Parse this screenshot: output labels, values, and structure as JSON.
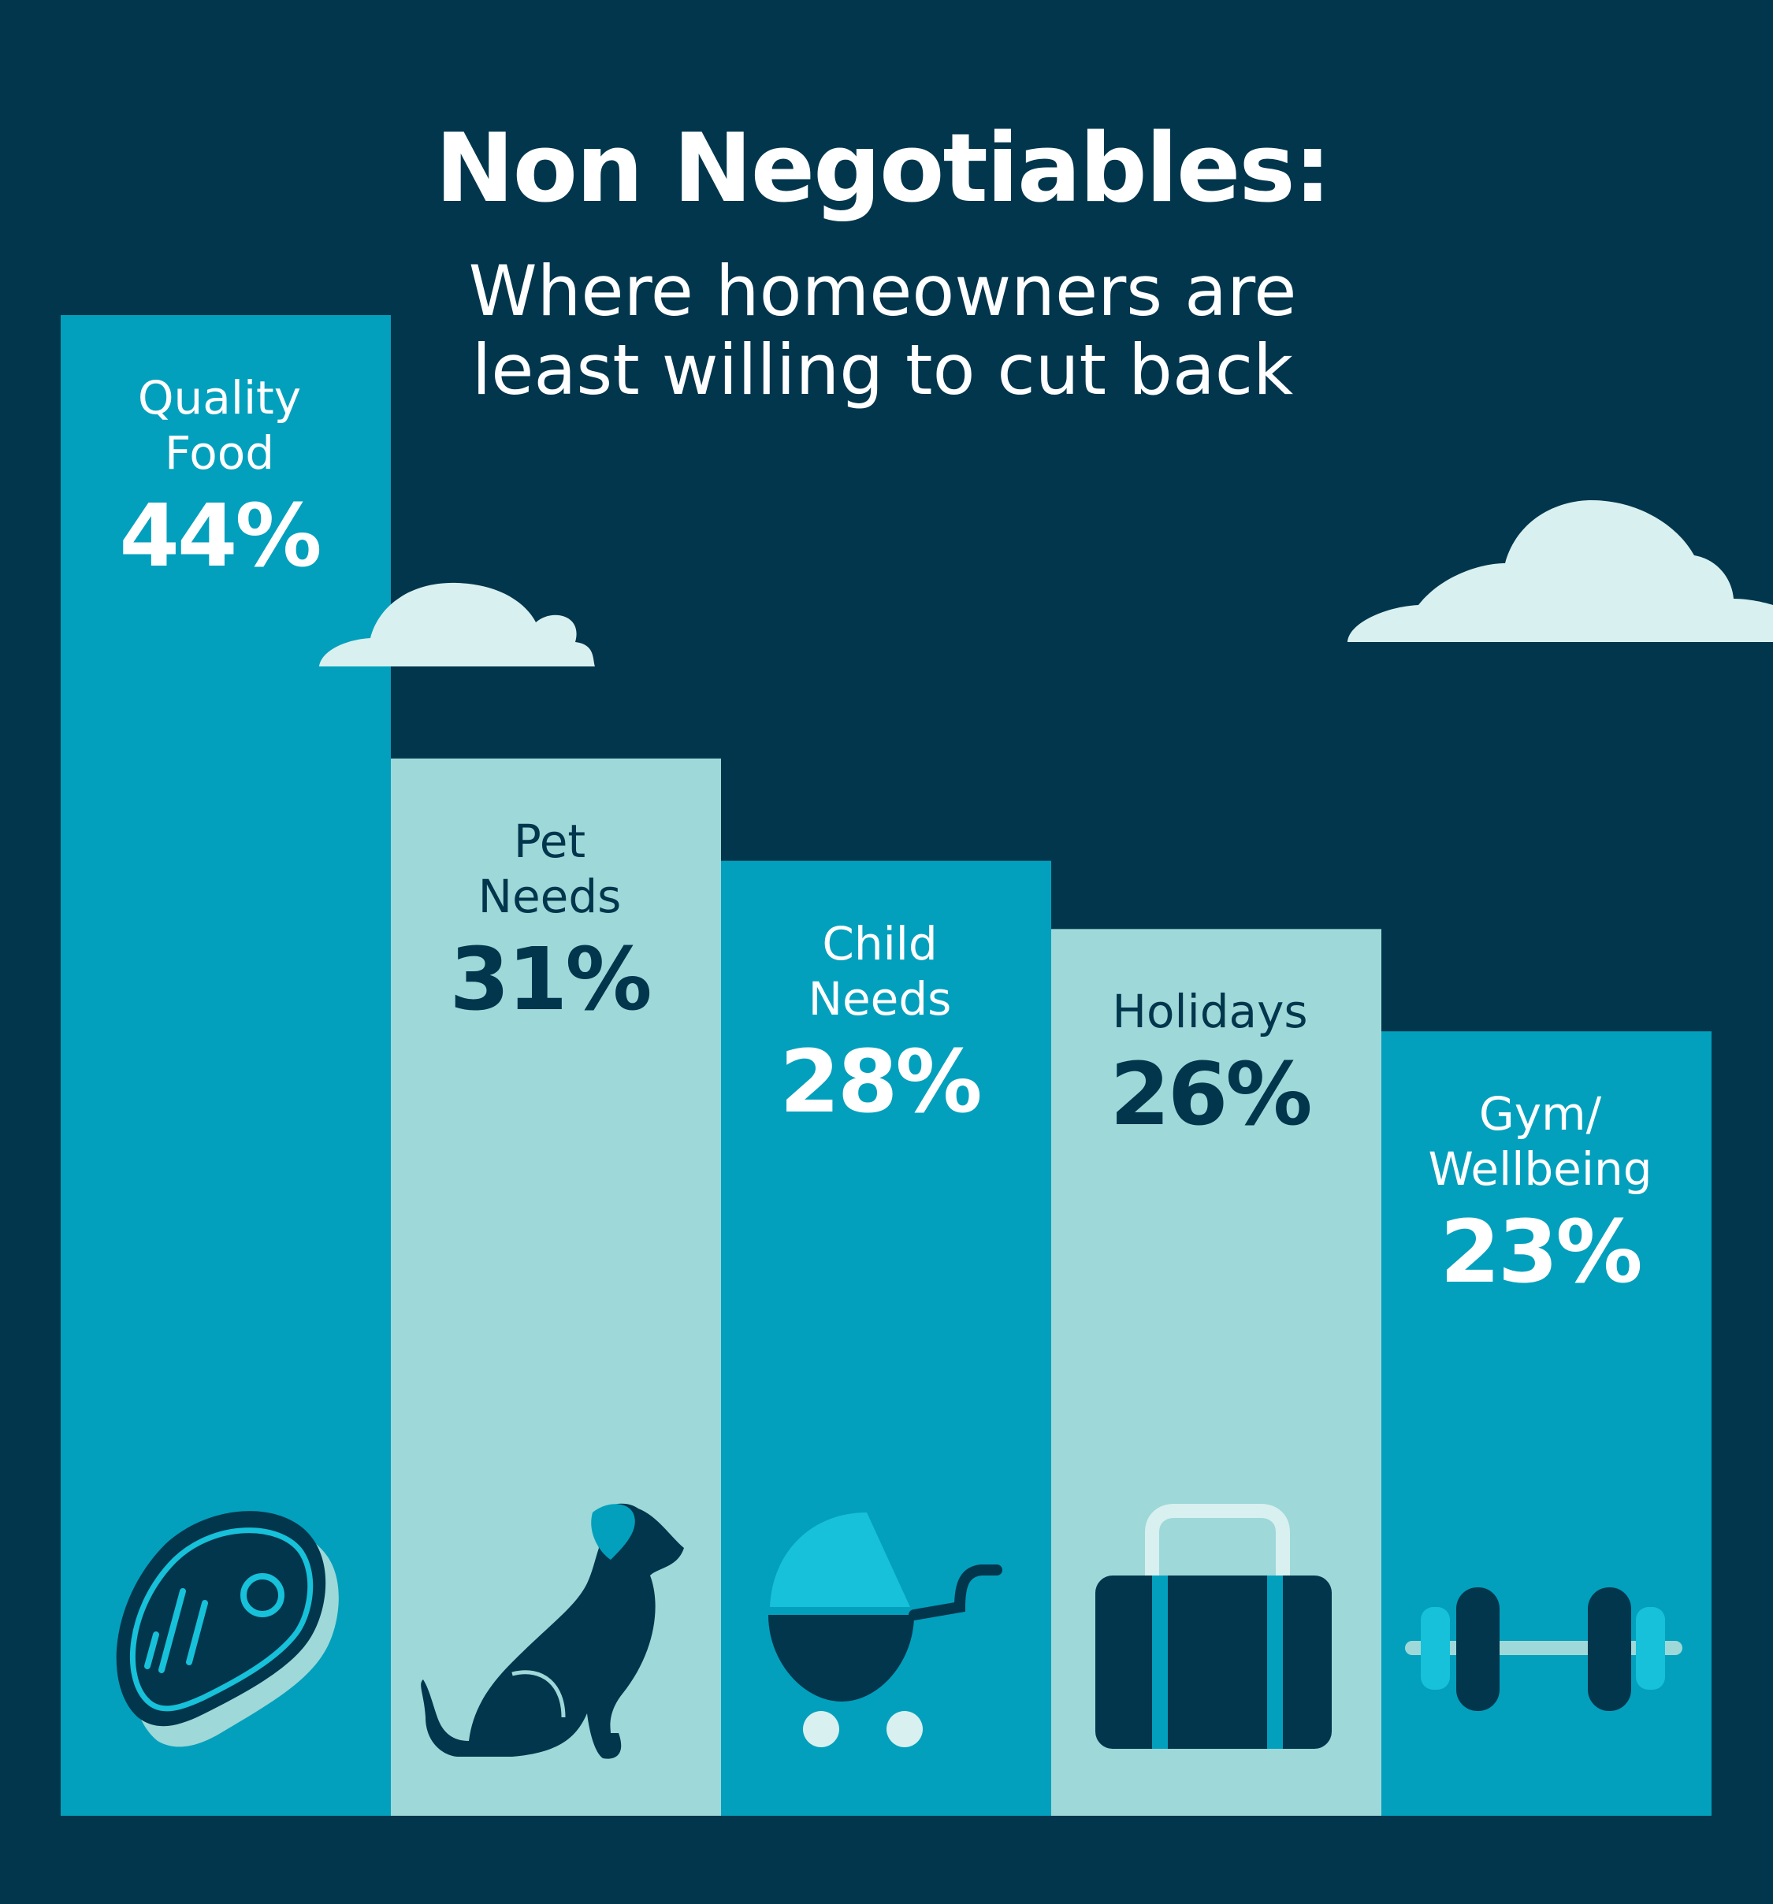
{
  "title": "Non Negotiables:",
  "subtitle_line1": "Where homeowners are",
  "subtitle_line2": "least willing to cut back",
  "colors": {
    "background": "#02364d",
    "bar_dark": "#02a0bd",
    "bar_light": "#9ed8d8",
    "cloud": "#d8f0ef",
    "icon_dark": "#02364d",
    "icon_accent": "#16c1d9"
  },
  "chart_data": {
    "type": "bar",
    "title": "Non Negotiables:",
    "subtitle": "Where homeowners are least willing to cut back",
    "categories": [
      "Quality Food",
      "Pet Needs",
      "Child Needs",
      "Holidays",
      "Gym/ Wellbeing"
    ],
    "values": [
      44,
      31,
      28,
      26,
      23
    ],
    "value_labels": [
      "44%",
      "31%",
      "28%",
      "26%",
      "23%"
    ],
    "unit": "%",
    "label_lines": [
      [
        "Quality",
        "Food"
      ],
      [
        "Pet",
        "Needs"
      ],
      [
        "Child",
        "Needs"
      ],
      [
        "Holidays"
      ],
      [
        "Gym/",
        "Wellbeing"
      ]
    ],
    "icons": [
      "steak-icon",
      "dog-icon",
      "pram-icon",
      "suitcase-icon",
      "dumbbell-icon"
    ],
    "bar_styles": [
      "dark",
      "light",
      "dark",
      "light",
      "dark"
    ],
    "xlabel": "",
    "ylabel": "",
    "grid": false,
    "legend": "none"
  }
}
